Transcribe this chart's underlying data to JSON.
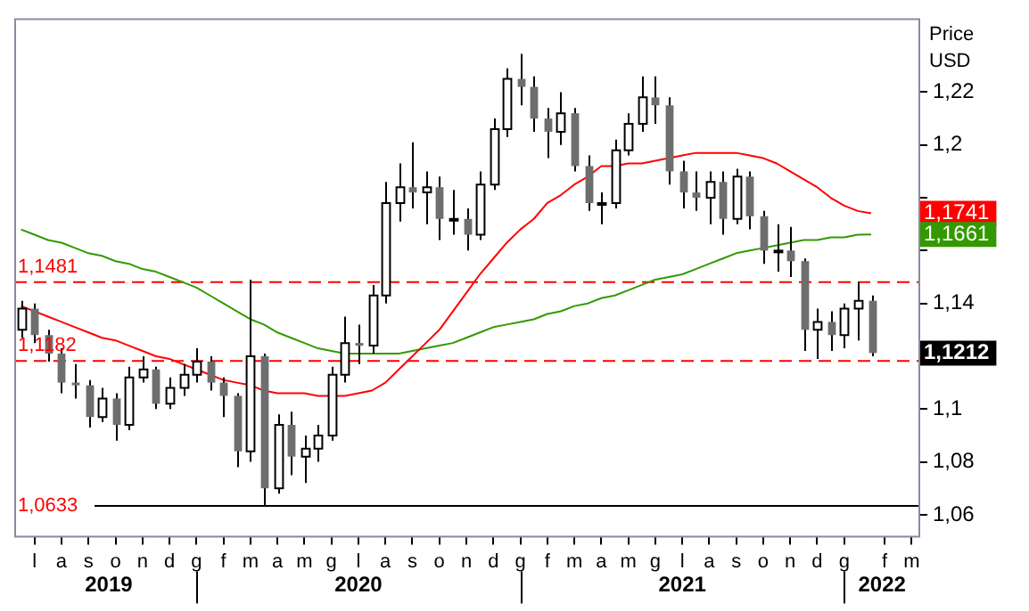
{
  "chart_data": {
    "type": "candlestick",
    "ylabel": "Price USD",
    "colors": [
      "#ffffff",
      "#6e6e6e",
      "#6e6e6e",
      "#6e6e6e",
      "#6e6e6e",
      "#6e6e6e",
      "#ffffff",
      "#6e6e6e",
      "#ffffff",
      "#ffffff",
      "#6e6e6e",
      "#ffffff",
      "#ffffff",
      "#ffffff",
      "#6e6e6e",
      "#6e6e6e",
      "#6e6e6e",
      "#ffffff",
      "#6e6e6e",
      "#ffffff",
      "#6e6e6e",
      "#ffffff",
      "#ffffff",
      "#ffffff",
      "#ffffff",
      "#6e6e6e",
      "#ffffff",
      "#ffffff",
      "#ffffff",
      "#6e6e6e",
      "#ffffff",
      "#6e6e6e",
      "#6e6e6e",
      "#6e6e6e",
      "#ffffff",
      "#ffffff",
      "#ffffff",
      "#6e6e6e",
      "#6e6e6e",
      "#6e6e6e",
      "#ffffff",
      "#6e6e6e",
      "#6e6e6e",
      "#6e6e6e",
      "#ffffff",
      "#ffffff",
      "#ffffff",
      "#6e6e6e",
      "#6e6e6e",
      "#6e6e6e",
      "#6e6e6e",
      "#ffffff",
      "#6e6e6e",
      "#ffffff",
      "#6e6e6e",
      "#6e6e6e",
      "#6e6e6e",
      "#6e6e6e",
      "#6e6e6e",
      "#ffffff",
      "#6e6e6e",
      "#ffffff",
      "#ffffff",
      "#6e6e6e",
      null,
      null,
      null
    ],
    "categories": [
      null,
      "l",
      null,
      "a",
      null,
      "s",
      null,
      "o",
      null,
      "n",
      null,
      "d",
      null,
      "g",
      null,
      "f",
      null,
      "m",
      null,
      "a",
      null,
      "m",
      null,
      "g",
      null,
      "l",
      null,
      "a",
      null,
      "s",
      null,
      "o",
      null,
      "n",
      null,
      "d",
      null,
      "g",
      null,
      "f",
      null,
      "m",
      null,
      "a",
      null,
      "m",
      null,
      "g",
      null,
      "l",
      null,
      "a",
      null,
      "s",
      null,
      "o",
      null,
      "n",
      null,
      "d",
      null,
      "g",
      null,
      null,
      "f",
      null,
      "m"
    ],
    "ohlc": [
      [
        1.13,
        1.141,
        1.127,
        1.138
      ],
      [
        1.138,
        1.14,
        1.125,
        1.128
      ],
      [
        1.128,
        1.13,
        1.118,
        1.121
      ],
      [
        1.121,
        1.123,
        1.106,
        1.11
      ],
      [
        1.11,
        1.117,
        1.104,
        1.109
      ],
      [
        1.109,
        1.111,
        1.093,
        1.097
      ],
      [
        1.097,
        1.108,
        1.095,
        1.104
      ],
      [
        1.104,
        1.106,
        1.088,
        1.094
      ],
      [
        1.094,
        1.116,
        1.092,
        1.112
      ],
      [
        1.112,
        1.12,
        1.11,
        1.115
      ],
      [
        1.115,
        1.116,
        1.1,
        1.102
      ],
      [
        1.102,
        1.112,
        1.1,
        1.108
      ],
      [
        1.108,
        1.117,
        1.105,
        1.113
      ],
      [
        1.113,
        1.123,
        1.11,
        1.118
      ],
      [
        1.118,
        1.12,
        1.107,
        1.11
      ],
      [
        1.11,
        1.112,
        1.097,
        1.105
      ],
      [
        1.105,
        1.106,
        1.078,
        1.084
      ],
      [
        1.084,
        1.149,
        1.08,
        1.12
      ],
      [
        1.12,
        1.121,
        1.0633,
        1.07
      ],
      [
        1.07,
        1.098,
        1.068,
        1.094
      ],
      [
        1.094,
        1.099,
        1.075,
        1.082
      ],
      [
        1.082,
        1.09,
        1.072,
        1.085
      ],
      [
        1.085,
        1.094,
        1.08,
        1.09
      ],
      [
        1.09,
        1.116,
        1.088,
        1.113
      ],
      [
        1.113,
        1.135,
        1.11,
        1.125
      ],
      [
        1.125,
        1.132,
        1.117,
        1.124
      ],
      [
        1.124,
        1.147,
        1.121,
        1.143
      ],
      [
        1.143,
        1.186,
        1.14,
        1.178
      ],
      [
        1.178,
        1.193,
        1.171,
        1.184
      ],
      [
        1.184,
        1.201,
        1.176,
        1.182
      ],
      [
        1.182,
        1.19,
        1.17,
        1.184
      ],
      [
        1.184,
        1.188,
        1.164,
        1.172
      ],
      [
        1.172,
        1.183,
        1.166,
        1.172
      ],
      [
        1.172,
        1.176,
        1.16,
        1.166
      ],
      [
        1.166,
        1.19,
        1.164,
        1.185
      ],
      [
        1.185,
        1.21,
        1.183,
        1.206
      ],
      [
        1.206,
        1.229,
        1.203,
        1.225
      ],
      [
        1.225,
        1.2345,
        1.215,
        1.222
      ],
      [
        1.222,
        1.226,
        1.205,
        1.21
      ],
      [
        1.21,
        1.214,
        1.195,
        1.205
      ],
      [
        1.205,
        1.22,
        1.2,
        1.212
      ],
      [
        1.212,
        1.214,
        1.19,
        1.192
      ],
      [
        1.192,
        1.196,
        1.175,
        1.178
      ],
      [
        1.178,
        1.182,
        1.17,
        1.178
      ],
      [
        1.178,
        1.202,
        1.176,
        1.198
      ],
      [
        1.198,
        1.212,
        1.196,
        1.208
      ],
      [
        1.208,
        1.226,
        1.205,
        1.218
      ],
      [
        1.218,
        1.226,
        1.208,
        1.215
      ],
      [
        1.215,
        1.218,
        1.185,
        1.19
      ],
      [
        1.19,
        1.194,
        1.176,
        1.182
      ],
      [
        1.182,
        1.19,
        1.175,
        1.18
      ],
      [
        1.18,
        1.19,
        1.17,
        1.186
      ],
      [
        1.186,
        1.19,
        1.166,
        1.172
      ],
      [
        1.172,
        1.191,
        1.17,
        1.188
      ],
      [
        1.188,
        1.19,
        1.168,
        1.173
      ],
      [
        1.173,
        1.175,
        1.155,
        1.16
      ],
      [
        1.16,
        1.17,
        1.152,
        1.16
      ],
      [
        1.16,
        1.169,
        1.15,
        1.156
      ],
      [
        1.156,
        1.157,
        1.122,
        1.13
      ],
      [
        1.13,
        1.138,
        1.119,
        1.133
      ],
      [
        1.133,
        1.137,
        1.122,
        1.128
      ],
      [
        1.128,
        1.14,
        1.123,
        1.138
      ],
      [
        1.138,
        1.148,
        1.126,
        1.141
      ],
      [
        1.141,
        1.143,
        1.12,
        1.1212
      ],
      null,
      null,
      null
    ],
    "series": [
      {
        "type": "line",
        "color": "#ff0000",
        "values": [
          1.139,
          1.137,
          1.135,
          1.133,
          1.131,
          1.129,
          1.127,
          1.126,
          1.124,
          1.122,
          1.12,
          1.119,
          1.117,
          1.115,
          1.113,
          1.111,
          1.11,
          1.109,
          1.107,
          1.106,
          1.106,
          1.106,
          1.105,
          1.105,
          1.105,
          1.106,
          1.107,
          1.11,
          1.115,
          1.12,
          1.125,
          1.13,
          1.137,
          1.144,
          1.151,
          1.157,
          1.163,
          1.168,
          1.172,
          1.178,
          1.181,
          1.185,
          1.188,
          1.192,
          1.192,
          1.193,
          1.193,
          1.194,
          1.195,
          1.196,
          1.197,
          1.197,
          1.197,
          1.197,
          1.196,
          1.195,
          1.193,
          1.19,
          1.187,
          1.184,
          1.18,
          1.177,
          1.175,
          1.1741,
          null,
          null,
          null
        ]
      },
      {
        "type": "line",
        "color": "#339900",
        "values": [
          1.168,
          1.166,
          1.164,
          1.163,
          1.161,
          1.159,
          1.158,
          1.156,
          1.155,
          1.153,
          1.152,
          1.15,
          1.148,
          1.146,
          1.143,
          1.14,
          1.137,
          1.134,
          1.132,
          1.129,
          1.127,
          1.125,
          1.123,
          1.122,
          1.121,
          1.121,
          1.121,
          1.121,
          1.121,
          1.122,
          1.123,
          1.124,
          1.125,
          1.127,
          1.129,
          1.131,
          1.132,
          1.133,
          1.134,
          1.136,
          1.137,
          1.139,
          1.14,
          1.142,
          1.143,
          1.145,
          1.147,
          1.149,
          1.15,
          1.151,
          1.153,
          1.155,
          1.157,
          1.159,
          1.16,
          1.161,
          1.162,
          1.163,
          1.164,
          1.164,
          1.165,
          1.165,
          1.166,
          1.1661,
          null,
          null,
          null
        ]
      }
    ],
    "ylim": [
      1.052,
      1.248
    ],
    "yticks": [
      {
        "value": 1.06,
        "label": "1,06"
      },
      {
        "value": 1.08,
        "label": "1,08"
      },
      {
        "value": 1.1,
        "label": "1,1"
      },
      {
        "value": 1.12,
        "label": null
      },
      {
        "value": 1.14,
        "label": "1,14"
      },
      {
        "value": 1.16,
        "label": null
      },
      {
        "value": 1.18,
        "label": null
      },
      {
        "value": 1.2,
        "label": "1,2"
      },
      {
        "value": 1.22,
        "label": "1,22"
      }
    ],
    "ref_lines": [
      {
        "axis": "y",
        "value": 1.1481,
        "label": "1,1481",
        "color": "#ff0000",
        "line_style": "dashed"
      },
      {
        "axis": "y",
        "value": 1.1182,
        "label": "1,1182",
        "color": "#ff0000",
        "line_style": "dashed"
      },
      {
        "axis": "y",
        "value": 1.0633,
        "label": "1,0633",
        "color": "#000000",
        "line_style": "solid"
      }
    ],
    "annotations": [
      {
        "text": "1,1741",
        "y": 1.1741
      },
      {
        "text": "1,1661",
        "y": 1.1661
      },
      {
        "text": "1,1212",
        "y": 1.1212
      },
      "2019",
      "2020",
      "2021",
      "2022"
    ],
    "grid": false,
    "legend": false
  }
}
